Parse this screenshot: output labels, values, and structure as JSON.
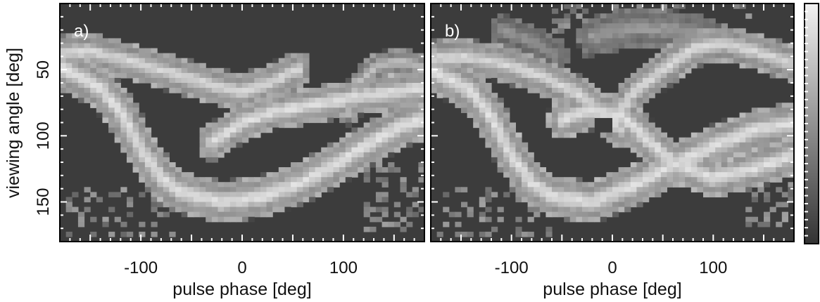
{
  "chart_data": [
    {
      "type": "heatmap",
      "panel_label": "a)",
      "xlabel": "pulse phase [deg]",
      "ylabel": "viewing angle [deg]",
      "xlim": [
        -180,
        180
      ],
      "ylim": [
        0,
        180
      ],
      "y_inverted": true,
      "x_ticks": [
        -100,
        0,
        100
      ],
      "y_ticks": [
        50,
        100,
        150
      ],
      "colors": {
        "background": "#3c3c3c",
        "high": "#e4e4e4",
        "frame": "#000000",
        "tick": "#ffffff"
      },
      "bands": [
        {
          "hw": 14,
          "amp": 0.9,
          "pts": [
            [
              -180,
              38
            ],
            [
              -150,
              36
            ],
            [
              -120,
              42
            ],
            [
              -90,
              48
            ],
            [
              -60,
              55
            ],
            [
              -30,
              62
            ],
            [
              0,
              67
            ],
            [
              30,
              59
            ],
            [
              55,
              50
            ]
          ]
        },
        {
          "hw": 16,
          "amp": 0.95,
          "pts": [
            [
              -180,
              48
            ],
            [
              -140,
              64
            ],
            [
              -120,
              82
            ],
            [
              -100,
              110
            ],
            [
              -80,
              132
            ],
            [
              -60,
              143
            ],
            [
              -20,
              150
            ],
            [
              20,
              146
            ],
            [
              60,
              135
            ],
            [
              100,
              118
            ],
            [
              130,
              104
            ],
            [
              160,
              92
            ],
            [
              180,
              88
            ]
          ]
        },
        {
          "hw": 14,
          "amp": 0.95,
          "pts": [
            [
              -30,
              105
            ],
            [
              0,
              90
            ],
            [
              30,
              82
            ],
            [
              60,
              78
            ],
            [
              90,
              74
            ],
            [
              120,
              70
            ],
            [
              150,
              67
            ],
            [
              180,
              64
            ]
          ]
        },
        {
          "hw": 10,
          "amp": 0.75,
          "pts": [
            [
              105,
              82
            ],
            [
              115,
              60
            ],
            [
              135,
              46
            ],
            [
              160,
              44
            ],
            [
              180,
              50
            ]
          ]
        },
        {
          "hw": 9,
          "amp": 0.55,
          "pts": [
            [
              175,
              55
            ],
            [
              178,
              75
            ],
            [
              180,
              92
            ]
          ]
        }
      ],
      "speckle": [
        {
          "x": [
            120,
            180
          ],
          "y": [
            120,
            172
          ],
          "p": 0.38
        },
        {
          "x": [
            -175,
            -60
          ],
          "y": [
            140,
            176
          ],
          "p": 0.22
        }
      ]
    },
    {
      "type": "heatmap",
      "panel_label": "b)",
      "xlabel": "pulse phase [deg]",
      "xlim": [
        -180,
        180
      ],
      "ylim": [
        0,
        180
      ],
      "y_inverted": true,
      "x_ticks": [
        -100,
        0,
        100
      ],
      "colors": {
        "background": "#3c3c3c",
        "high": "#e4e4e4",
        "frame": "#000000",
        "tick": "#ffffff"
      },
      "bands": [
        {
          "hw": 14,
          "amp": 0.9,
          "pts": [
            [
              -180,
              42
            ],
            [
              -150,
              40
            ],
            [
              -110,
              45
            ],
            [
              -70,
              55
            ],
            [
              -30,
              70
            ],
            [
              -5,
              88
            ],
            [
              10,
              96
            ]
          ]
        },
        {
          "hw": 16,
          "amp": 0.95,
          "pts": [
            [
              -180,
              50
            ],
            [
              -140,
              66
            ],
            [
              -120,
              86
            ],
            [
              -100,
              115
            ],
            [
              -80,
              136
            ],
            [
              -60,
              146
            ],
            [
              -20,
              150
            ],
            [
              20,
              138
            ],
            [
              60,
              122
            ],
            [
              100,
              108
            ],
            [
              140,
              96
            ],
            [
              180,
              90
            ]
          ]
        },
        {
          "hw": 15,
          "amp": 0.95,
          "pts": [
            [
              -50,
              88
            ],
            [
              -20,
              80
            ],
            [
              10,
              85
            ],
            [
              30,
              100
            ],
            [
              60,
              120
            ],
            [
              100,
              132
            ],
            [
              140,
              125
            ],
            [
              180,
              115
            ]
          ]
        },
        {
          "hw": 14,
          "amp": 0.9,
          "pts": [
            [
              0,
              90
            ],
            [
              20,
              68
            ],
            [
              50,
              50
            ],
            [
              80,
              34
            ],
            [
              110,
              30
            ],
            [
              140,
              36
            ],
            [
              165,
              42
            ],
            [
              180,
              46
            ]
          ]
        },
        {
          "hw": 15,
          "amp": 0.55,
          "pts": [
            [
              -20,
              25
            ],
            [
              20,
              18
            ],
            [
              60,
              20
            ],
            [
              90,
              24
            ]
          ]
        },
        {
          "hw": 12,
          "amp": 0.5,
          "pts": [
            [
              -110,
              20
            ],
            [
              -80,
              28
            ],
            [
              -55,
              40
            ]
          ]
        }
      ],
      "holes": [
        {
          "cx": -10,
          "cy": 92,
          "rx": 11,
          "ry": 7
        },
        {
          "cx": 150,
          "cy": 60,
          "rx": 10,
          "ry": 5
        }
      ],
      "speckle": [
        {
          "x": [
            130,
            180
          ],
          "y": [
            120,
            168
          ],
          "p": 0.35
        },
        {
          "x": [
            -175,
            -60
          ],
          "y": [
            140,
            176
          ],
          "p": 0.22
        },
        {
          "x": [
            -60,
            140
          ],
          "y": [
            0,
            40
          ],
          "p": 0.18
        }
      ]
    }
  ],
  "colorbar": {
    "top_color": "#f2f2f2",
    "bottom_color": "#333333"
  }
}
